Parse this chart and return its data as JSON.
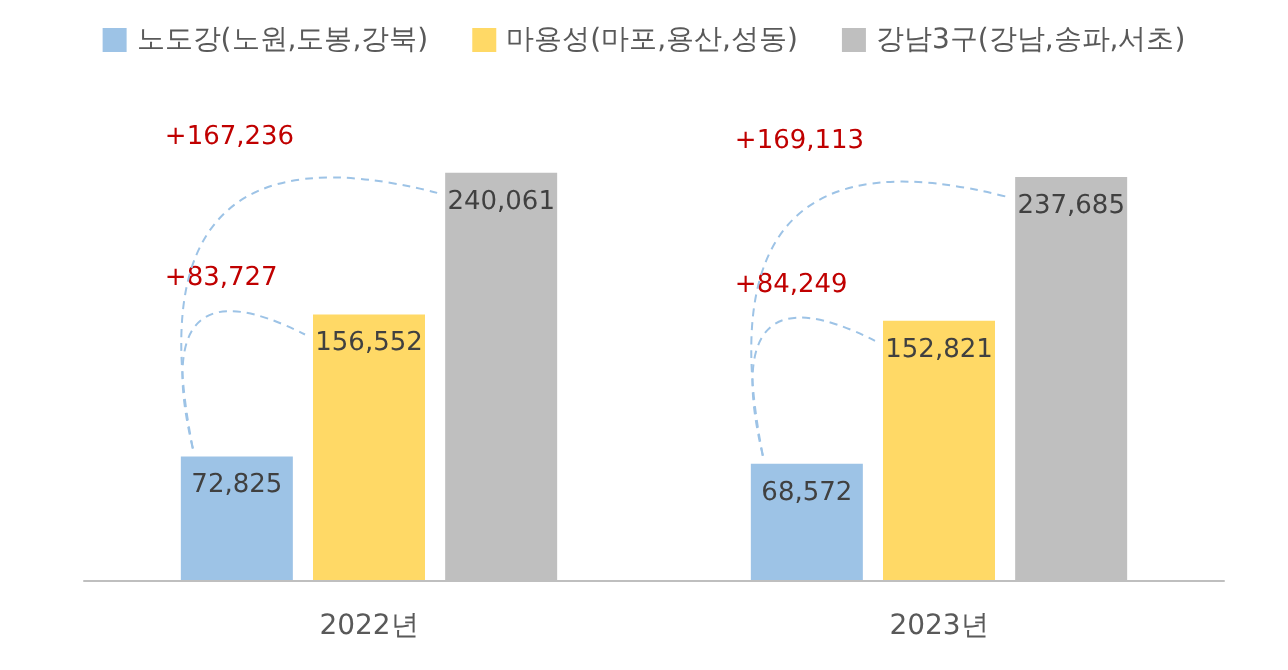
{
  "chart_data": {
    "type": "bar",
    "categories": [
      "2022년",
      "2023년"
    ],
    "series": [
      {
        "name": "노도강(노원,도봉,강북)",
        "color": "#9dc3e6",
        "values": [
          72825,
          68572
        ],
        "value_labels": [
          "72,825",
          "68,572"
        ]
      },
      {
        "name": "마용성(마포,용산,성동)",
        "color": "#ffd966",
        "values": [
          156552,
          152821
        ],
        "value_labels": [
          "156,552",
          "152,821"
        ]
      },
      {
        "name": "강남3구(강남,송파,서초)",
        "color": "#bfbfbf",
        "values": [
          240061,
          237685
        ],
        "value_labels": [
          "240,061",
          "237,685"
        ]
      }
    ],
    "annotations": [
      "+167,236",
      "+83,727",
      "+169,113",
      "+84,249"
    ],
    "legend": "top"
  }
}
